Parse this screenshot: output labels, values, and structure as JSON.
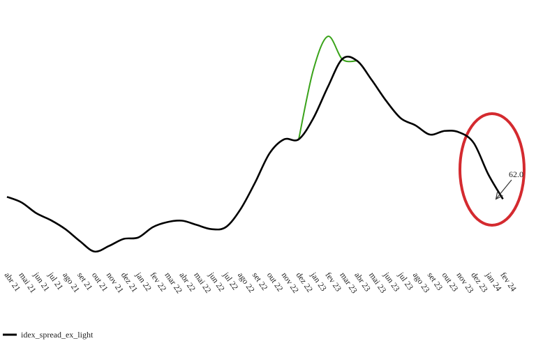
{
  "chart_data": {
    "type": "line",
    "categories": [
      "abr 21",
      "mai 21",
      "jun 21",
      "jul 21",
      "ago 21",
      "set 21",
      "out 21",
      "nov 21",
      "dez 21",
      "jan 22",
      "fev 22",
      "mar 22",
      "abr 22",
      "mai 22",
      "jun 22",
      "jul 22",
      "ago 22",
      "set 22",
      "out 22",
      "nov 22",
      "dez 22",
      "jan 23",
      "fev 23",
      "mar 23",
      "abr 23",
      "mai 23",
      "jun 23",
      "jul 23",
      "ago 23",
      "set 23",
      "out 23",
      "nov 23",
      "dez 23",
      "jan 24",
      "fev 24"
    ],
    "series": [
      {
        "color": "#3aa31a",
        "values": [
          null,
          null,
          null,
          null,
          null,
          null,
          null,
          null,
          null,
          null,
          null,
          null,
          null,
          null,
          null,
          null,
          null,
          null,
          null,
          null,
          83.3,
          108,
          120,
          111.8,
          111.3,
          null,
          null,
          null,
          null,
          null,
          null,
          null,
          null,
          null,
          null
        ]
      },
      {
        "name": "idex_spread_ex_light",
        "color": "#000000",
        "values": [
          62.8,
          60.8,
          57,
          54.5,
          51.3,
          47,
          43.3,
          45.3,
          47.8,
          48.3,
          52,
          53.8,
          54.3,
          52.8,
          51.3,
          52,
          58.3,
          67.8,
          78.3,
          83.3,
          83.3,
          90.8,
          102,
          112,
          111.3,
          104.5,
          97,
          90.8,
          88.3,
          85,
          86.3,
          85.8,
          82,
          70.8,
          62
        ]
      }
    ],
    "annotation": "62.0",
    "ylim": [
      41,
      128
    ]
  }
}
